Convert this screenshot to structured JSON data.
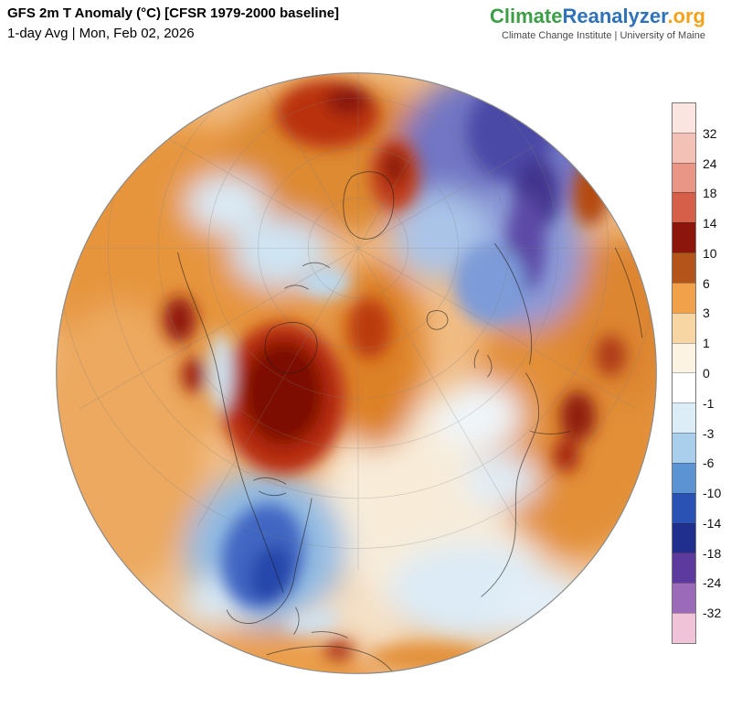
{
  "header": {
    "title": "GFS 2m T Anomaly (°C) [CFSR 1979-2000 baseline]",
    "subtitle": "1-day Avg | Mon, Feb 02, 2026"
  },
  "brand": {
    "logo": {
      "climate": "Climate",
      "reanalyzer": "Reanalyzer",
      "org": ".org",
      "climate_color": "#3c9e47",
      "reanalyzer_color": "#3072b8",
      "org_color": "#f5a21b"
    },
    "tagline": "Climate Change Institute | University of Maine"
  },
  "colorbar": {
    "unit": "°C",
    "labels": [
      "32",
      "24",
      "18",
      "14",
      "10",
      "6",
      "3",
      "1",
      "0",
      "-1",
      "-3",
      "-6",
      "-10",
      "-14",
      "-18",
      "-24",
      "-32"
    ],
    "segment_colors": [
      "#fbe5e0",
      "#f4c1b6",
      "#ea9686",
      "#d65f4a",
      "#8c150c",
      "#b5541a",
      "#f0a149",
      "#f8d6a4",
      "#fdf3e3",
      "#ffffff",
      "#dcedf8",
      "#a9cfec",
      "#5b93d3",
      "#2a52b5",
      "#202e8e",
      "#5c3a9e",
      "#9b6ab8",
      "#f0c3d8"
    ]
  }
}
